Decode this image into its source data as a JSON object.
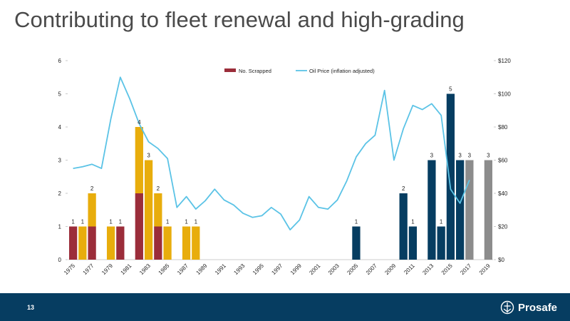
{
  "slide": {
    "title": "Contributing to fleet renewal and high-grading",
    "page_number": "13",
    "logo_name": "Prosafe"
  },
  "colors": {
    "scrapped": "#9b2d3a",
    "yellow": "#e8ad0c",
    "navy": "#063d61",
    "gray": "#8c8c8c",
    "oil_line": "#5bc3e6",
    "footer": "#063d61"
  },
  "chart_data": {
    "type": "bar",
    "legend": {
      "position": "top",
      "bar_label": "No. Scrapped",
      "line_label": "Oil Price (inflation adjusted)"
    },
    "x_tick_labels": [
      "1975",
      "1977",
      "1979",
      "1981",
      "1983",
      "1985",
      "1987",
      "1989",
      "1991",
      "1993",
      "1995",
      "1997",
      "1999",
      "2001",
      "2003",
      "2005",
      "2007",
      "2009",
      "2011",
      "2013",
      "2015",
      "2017",
      "2019"
    ],
    "y_left": {
      "range": [
        0,
        6
      ],
      "ticks": [
        "0",
        "1",
        "2",
        "3",
        "4",
        "5",
        "6"
      ]
    },
    "y_right": {
      "range": [
        0,
        120
      ],
      "ticks": [
        "$0",
        "$20",
        "$40",
        "$60",
        "$80",
        "$100",
        "$120"
      ]
    },
    "years": [
      1975,
      1976,
      1977,
      1978,
      1979,
      1980,
      1981,
      1982,
      1983,
      1984,
      1985,
      1986,
      1987,
      1988,
      1989,
      1990,
      1991,
      1992,
      1993,
      1994,
      1995,
      1996,
      1997,
      1998,
      1999,
      2000,
      2001,
      2002,
      2003,
      2004,
      2005,
      2006,
      2007,
      2008,
      2009,
      2010,
      2011,
      2012,
      2013,
      2014,
      2015,
      2016,
      2017,
      2018,
      2019
    ],
    "bars": [
      {
        "year": 1975,
        "segments": [
          {
            "color": "scrapped",
            "value": 1
          }
        ],
        "label": "1"
      },
      {
        "year": 1976,
        "segments": [
          {
            "color": "yellow",
            "value": 1
          }
        ],
        "label": "1"
      },
      {
        "year": 1977,
        "segments": [
          {
            "color": "scrapped",
            "value": 1
          },
          {
            "color": "yellow",
            "value": 1
          }
        ],
        "label": "2"
      },
      {
        "year": 1979,
        "segments": [
          {
            "color": "yellow",
            "value": 1
          }
        ],
        "label": "1"
      },
      {
        "year": 1980,
        "segments": [
          {
            "color": "scrapped",
            "value": 1
          }
        ],
        "label": "1"
      },
      {
        "year": 1982,
        "segments": [
          {
            "color": "scrapped",
            "value": 2
          },
          {
            "color": "yellow",
            "value": 2
          }
        ],
        "label": "4"
      },
      {
        "year": 1983,
        "segments": [
          {
            "color": "yellow",
            "value": 3
          }
        ],
        "label": "3"
      },
      {
        "year": 1984,
        "segments": [
          {
            "color": "scrapped",
            "value": 1
          },
          {
            "color": "yellow",
            "value": 1
          }
        ],
        "label": "2"
      },
      {
        "year": 1985,
        "segments": [
          {
            "color": "yellow",
            "value": 1
          }
        ],
        "label": "1"
      },
      {
        "year": 1987,
        "segments": [
          {
            "color": "yellow",
            "value": 1
          }
        ],
        "label": "1"
      },
      {
        "year": 1988,
        "segments": [
          {
            "color": "yellow",
            "value": 1
          }
        ],
        "label": "1"
      },
      {
        "year": 2005,
        "segments": [
          {
            "color": "navy",
            "value": 1
          }
        ],
        "label": "1"
      },
      {
        "year": 2010,
        "segments": [
          {
            "color": "navy",
            "value": 2
          }
        ],
        "label": "2"
      },
      {
        "year": 2011,
        "segments": [
          {
            "color": "navy",
            "value": 1
          }
        ],
        "label": "1"
      },
      {
        "year": 2013,
        "segments": [
          {
            "color": "navy",
            "value": 3
          }
        ],
        "label": "3"
      },
      {
        "year": 2014,
        "segments": [
          {
            "color": "navy",
            "value": 1
          }
        ],
        "label": "1"
      },
      {
        "year": 2015,
        "segments": [
          {
            "color": "navy",
            "value": 5
          }
        ],
        "label": "5"
      },
      {
        "year": 2016,
        "segments": [
          {
            "color": "navy",
            "value": 3
          }
        ],
        "label": "3"
      },
      {
        "year": 2017,
        "segments": [
          {
            "color": "gray",
            "value": 3
          }
        ],
        "label": "3"
      },
      {
        "year": 2019,
        "segments": [
          {
            "color": "gray",
            "value": 3
          }
        ],
        "label": "3"
      }
    ],
    "oil_price": [
      [
        1975,
        55
      ],
      [
        1976,
        56
      ],
      [
        1977,
        57.5
      ],
      [
        1978,
        55
      ],
      [
        1979,
        85
      ],
      [
        1980,
        110
      ],
      [
        1981,
        97
      ],
      [
        1982,
        82
      ],
      [
        1983,
        71
      ],
      [
        1984,
        67
      ],
      [
        1985,
        61
      ],
      [
        1986,
        31.5
      ],
      [
        1987,
        38
      ],
      [
        1988,
        30.5
      ],
      [
        1989,
        35.5
      ],
      [
        1990,
        42.5
      ],
      [
        1991,
        36
      ],
      [
        1992,
        33
      ],
      [
        1993,
        28
      ],
      [
        1994,
        25.5
      ],
      [
        1995,
        26.5
      ],
      [
        1996,
        31.5
      ],
      [
        1997,
        27.5
      ],
      [
        1998,
        18
      ],
      [
        1999,
        24
      ],
      [
        2000,
        38
      ],
      [
        2001,
        31.5
      ],
      [
        2002,
        30.5
      ],
      [
        2003,
        36
      ],
      [
        2004,
        47.5
      ],
      [
        2005,
        62
      ],
      [
        2006,
        70
      ],
      [
        2007,
        75
      ],
      [
        2008,
        102
      ],
      [
        2009,
        60
      ],
      [
        2010,
        79
      ],
      [
        2011,
        93
      ],
      [
        2012,
        90.5
      ],
      [
        2013,
        94
      ],
      [
        2014,
        87
      ],
      [
        2015,
        42.5
      ],
      [
        2016,
        34
      ],
      [
        2017,
        48
      ]
    ]
  }
}
